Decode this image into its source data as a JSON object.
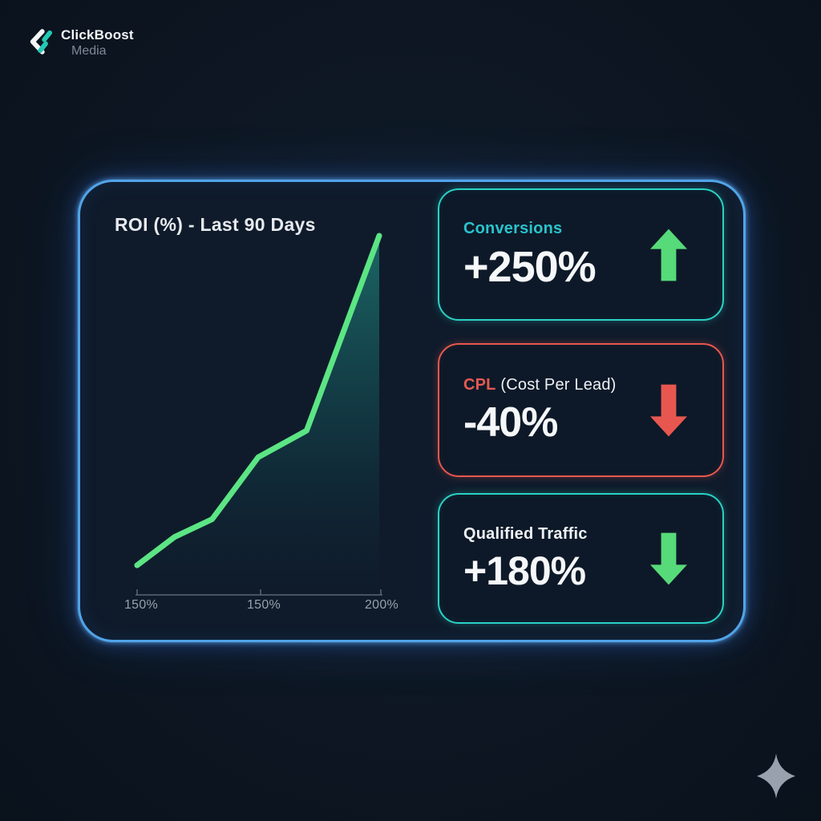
{
  "brand": {
    "name": "ClickBoost",
    "sub": "Media"
  },
  "panel": {
    "chart_title": "ROI (%) - Last 90 Days",
    "cards": [
      {
        "label": "Conversions",
        "value": "+250%",
        "trend": "up",
        "arrow_color": "#57da79",
        "border_color": "#2bd1c5",
        "label_color": "#2ac3cc"
      },
      {
        "label_primary": "CPL",
        "label_secondary": "(Cost Per Lead)",
        "value": "-40%",
        "trend": "down",
        "arrow_color": "#e8574f",
        "border_color": "#e8574f",
        "label_color": "#e65a52"
      },
      {
        "label": "Qualified Traffic",
        "value": "+180%",
        "trend": "down",
        "arrow_color": "#57da79",
        "border_color": "#2bd1c5",
        "label_color": "#eef1f4"
      }
    ]
  },
  "chart_data": {
    "type": "area",
    "title": "ROI (%) - Last 90 Days",
    "xlabel": "",
    "ylabel": "ROI (%)",
    "x_tick_labels": [
      "150%",
      "150%",
      "200%"
    ],
    "y_tick_labels": [],
    "grid": false,
    "legend": false,
    "series": [
      {
        "name": "ROI",
        "points_normalized": [
          {
            "x": 0.0,
            "y": 0.07
          },
          {
            "x": 0.155,
            "y": 0.15
          },
          {
            "x": 0.31,
            "y": 0.2
          },
          {
            "x": 0.5,
            "y": 0.375
          },
          {
            "x": 0.7,
            "y": 0.45
          },
          {
            "x": 1.0,
            "y": 1.0
          }
        ]
      }
    ],
    "line_color": "#5ce584",
    "fill_gradient_top": "#1c6b68",
    "fill_gradient_bottom": "#0f1b2b",
    "axis_color": "#5a6672"
  },
  "colors": {
    "background": "#0d1622",
    "panel_background": "#0f1b2b",
    "panel_border": "#51a4e8",
    "teal_accent": "#2bd1c5",
    "red_accent": "#e8574f",
    "green_accent": "#57da79",
    "text_primary": "#f5f7f9",
    "text_muted": "#97a1ac"
  },
  "icons": {
    "logo": "clickboost-chevron-logo",
    "sparkle": "four-point-star"
  }
}
